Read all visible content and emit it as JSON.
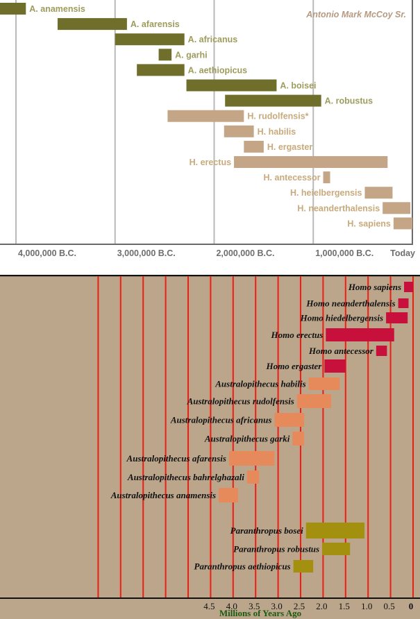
{
  "chart_data": [
    {
      "type": "bar",
      "orientation": "horizontal-range",
      "title": "",
      "credit": "Antonio Mark McCoy Sr.",
      "xlabel": "",
      "ylabel": "",
      "x_unit": "millions of years ago",
      "xlim": [
        4.16,
        0
      ],
      "grid": true,
      "tick_values": [
        4.0,
        3.0,
        2.0,
        1.0,
        0
      ],
      "tick_labels": [
        "4,000,000 B.C.",
        "3,000,000 B.C.",
        "2,000,000 B.C.",
        "1,000,000 B.C.",
        "Today"
      ],
      "colors": {
        "australopithecus": "#6f6e2b",
        "homo": "#c4a586",
        "australopithecus_label": "#9d9c5c",
        "homo_label": "#c8aa7c"
      },
      "series": [
        {
          "name": "A. anamensis",
          "group": "australopithecus",
          "start": 4.2,
          "end": 3.9,
          "label_side": "right"
        },
        {
          "name": "A. afarensis",
          "group": "australopithecus",
          "start": 3.58,
          "end": 2.88,
          "label_side": "right"
        },
        {
          "name": "A. africanus",
          "group": "australopithecus",
          "start": 3.0,
          "end": 2.3,
          "label_side": "right"
        },
        {
          "name": "A. garhi",
          "group": "australopithecus",
          "start": 2.56,
          "end": 2.43,
          "label_side": "right"
        },
        {
          "name": "A. aethiopicus",
          "group": "australopithecus",
          "start": 2.78,
          "end": 2.3,
          "label_side": "right"
        },
        {
          "name": "A. boisei",
          "group": "australopithecus",
          "start": 2.28,
          "end": 1.37,
          "label_side": "right"
        },
        {
          "name": "A. robustus",
          "group": "australopithecus",
          "start": 1.89,
          "end": 0.92,
          "label_side": "right"
        },
        {
          "name": "H. rudolfensis*",
          "group": "homo",
          "start": 2.47,
          "end": 1.7,
          "label_side": "right"
        },
        {
          "name": "H. habilis",
          "group": "homo",
          "start": 1.9,
          "end": 1.6,
          "label_side": "right"
        },
        {
          "name": "H. ergaster",
          "group": "homo",
          "start": 1.7,
          "end": 1.5,
          "label_side": "right"
        },
        {
          "name": "H. erectus",
          "group": "homo",
          "start": 1.8,
          "end": 0.25,
          "label_side": "left"
        },
        {
          "name": "H. antecessor",
          "group": "homo",
          "start": 0.9,
          "end": 0.83,
          "label_side": "left"
        },
        {
          "name": "H. heielbergensis",
          "group": "homo",
          "start": 0.48,
          "end": 0.2,
          "label_side": "left"
        },
        {
          "name": "H. neanderthalensis",
          "group": "homo",
          "start": 0.3,
          "end": 0.02,
          "label_side": "left"
        },
        {
          "name": "H. sapiens",
          "group": "homo",
          "start": 0.19,
          "end": 0.0,
          "label_side": "left"
        }
      ]
    },
    {
      "type": "bar",
      "orientation": "horizontal-range",
      "title": "",
      "xlabel": "Millions of Years Ago",
      "ylabel": "",
      "xlim": [
        7.0,
        0
      ],
      "grid": true,
      "grid_step": 0.5,
      "tick_values": [
        4.5,
        4.0,
        3.5,
        3.0,
        2.5,
        2.0,
        1.5,
        1.0,
        0.5,
        0
      ],
      "tick_labels": [
        "4.5",
        "4.0",
        "3.5",
        "3.0",
        "2.5",
        "2.0",
        "1.5",
        "1.0",
        "0.5",
        "0"
      ],
      "colors": {
        "background": "#bba68b",
        "grid": "#d42a1c",
        "homo": "#c8103c",
        "australopithecus": "#e68a5c",
        "paranthropus": "#a3900f"
      },
      "series": [
        {
          "name": "Homo sapiens",
          "group": "homo",
          "start": 0.2,
          "end": 0.0
        },
        {
          "name": "Homo neanderthalensis",
          "group": "homo",
          "start": 0.33,
          "end": 0.1
        },
        {
          "name": "Homo hiedelbergensis",
          "group": "homo",
          "start": 0.6,
          "end": 0.12
        },
        {
          "name": "Homo erectus",
          "group": "homo",
          "start": 1.94,
          "end": 0.42
        },
        {
          "name": "Homo antecessor",
          "group": "homo",
          "start": 0.82,
          "end": 0.58
        },
        {
          "name": "Homo ergaster",
          "group": "homo",
          "start": 1.97,
          "end": 1.5
        },
        {
          "name": "Australopithecus habilis",
          "group": "australopithecus",
          "start": 2.32,
          "end": 1.63
        },
        {
          "name": "Australopithecus rudolfensis",
          "group": "australopithecus",
          "start": 2.58,
          "end": 1.82
        },
        {
          "name": "Australopithecus africanus",
          "group": "australopithecus",
          "start": 3.08,
          "end": 2.42
        },
        {
          "name": "Australopithecus garki",
          "group": "australopithecus",
          "start": 2.68,
          "end": 2.42
        },
        {
          "name": "Australopithecus afarensis",
          "group": "australopithecus",
          "start": 4.09,
          "end": 3.08
        },
        {
          "name": "Australopithecus bahrelghazali",
          "group": "australopithecus",
          "start": 3.69,
          "end": 3.42
        },
        {
          "name": "Australopithecus anamensis",
          "group": "australopithecus",
          "start": 4.32,
          "end": 3.89
        },
        {
          "name": "Paranthropus bosei",
          "group": "paranthropus",
          "start": 2.38,
          "end": 1.08
        },
        {
          "name": "Paranthropus robustus",
          "group": "paranthropus",
          "start": 2.02,
          "end": 1.4
        },
        {
          "name": "Paranthropus aethiopicus",
          "group": "paranthropus",
          "start": 2.66,
          "end": 2.22
        }
      ]
    }
  ]
}
